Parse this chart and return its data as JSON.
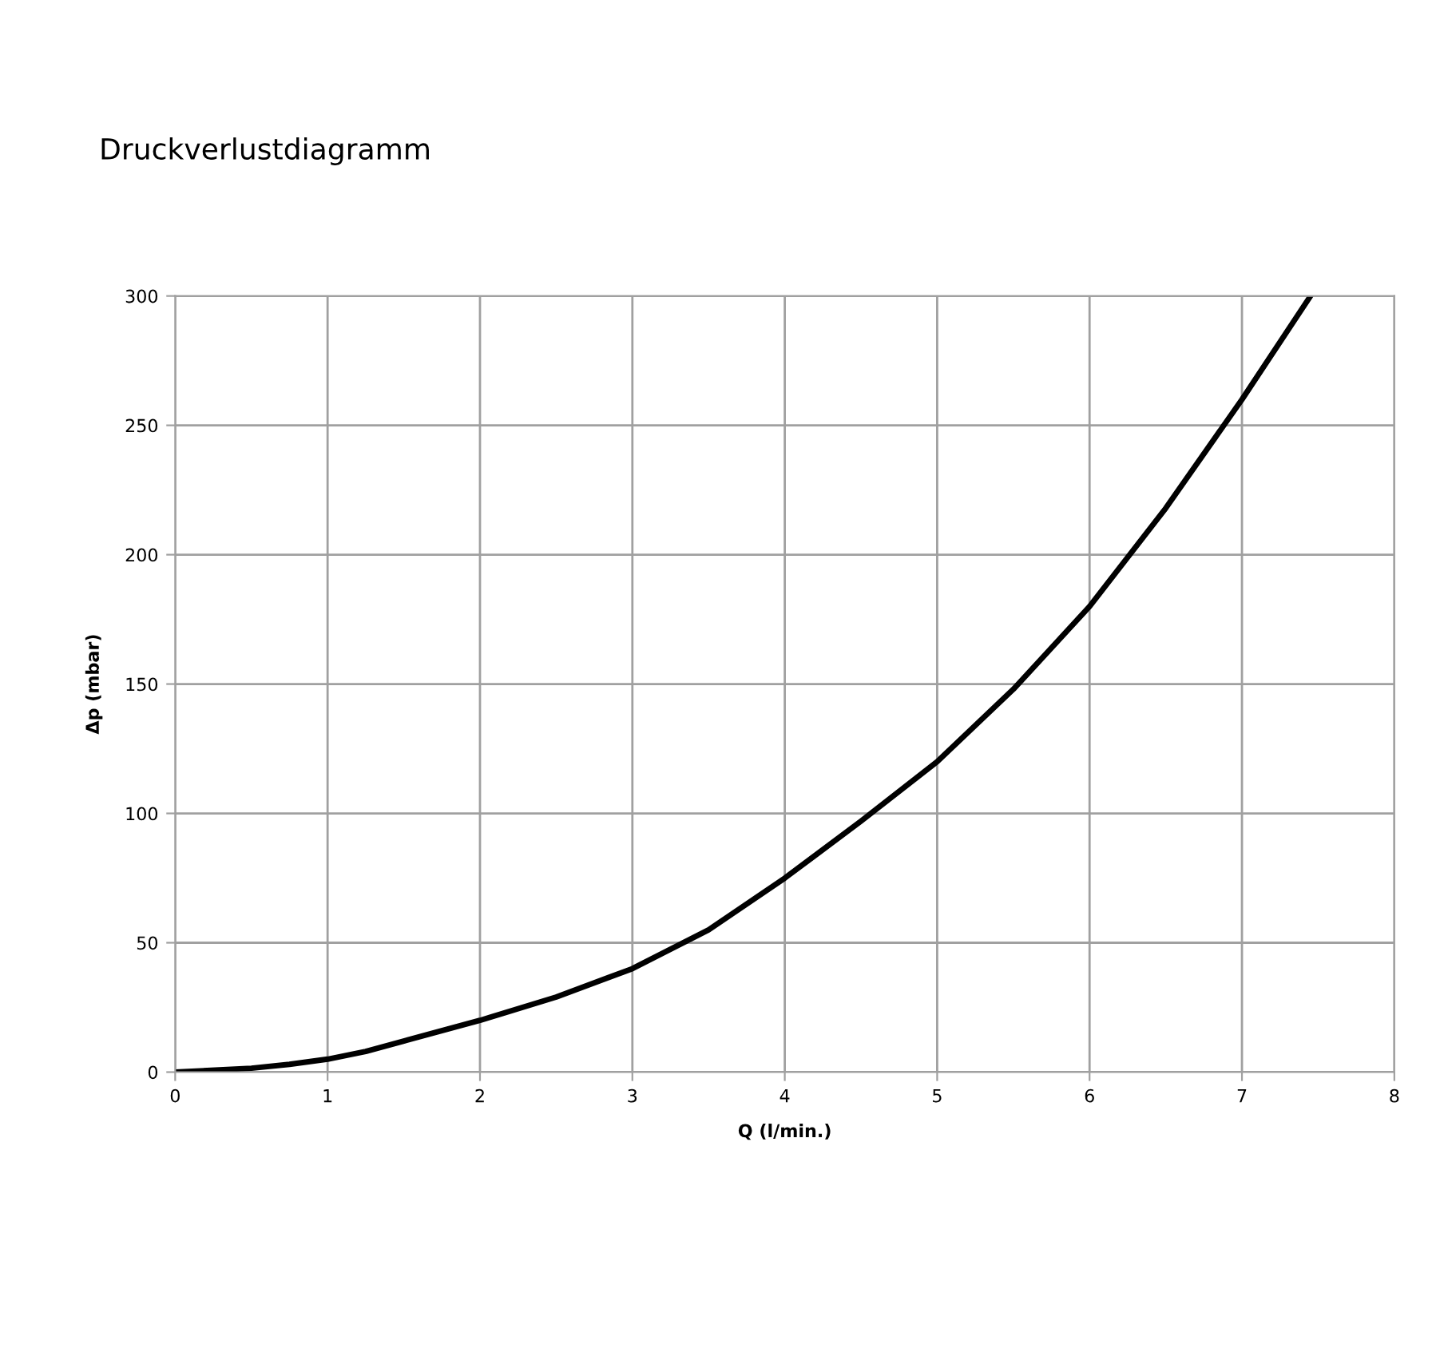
{
  "chart_data": {
    "type": "line",
    "title": "Druckverlustdiagramm",
    "xlabel": "Q (l/min.)",
    "ylabel": "Δp (mbar)",
    "series": [
      {
        "color": "#000000",
        "x": [
          0,
          0.5,
          0.75,
          1,
          1.25,
          1.5,
          2,
          2.5,
          3,
          3.5,
          4,
          4.5,
          5,
          5.5,
          6,
          6.5,
          7,
          7.45
        ],
        "values": [
          0,
          1.5,
          3,
          5,
          8,
          12,
          20,
          29,
          40,
          55,
          75,
          97,
          120,
          148,
          180,
          218,
          260,
          300
        ]
      }
    ],
    "xlim": [
      0,
      8
    ],
    "xticks": [
      0,
      1,
      2,
      3,
      4,
      5,
      6,
      7,
      8
    ],
    "ylim": [
      0,
      300
    ],
    "yticks": [
      0,
      50,
      100,
      150,
      200,
      250,
      300
    ],
    "grid": true,
    "marker": "none",
    "line_style": "solid"
  }
}
